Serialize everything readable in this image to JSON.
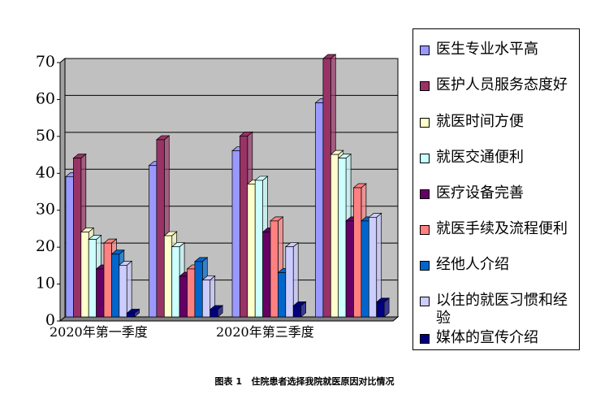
{
  "chart_data": {
    "type": "bar",
    "caption_label": "图表 1",
    "caption": "住院患者选择我院就医原因对比情况",
    "categories": [
      "2020年第一季度",
      null,
      "2020年第三季度",
      null
    ],
    "series": [
      {
        "name": "医生专业水平高",
        "color": "#9999ff",
        "values": [
          38,
          41,
          45,
          58
        ]
      },
      {
        "name": "医护人员服务态度好",
        "color": "#993366",
        "values": [
          43,
          48,
          49,
          70
        ]
      },
      {
        "name": "就医时间方便",
        "color": "#ffffcc",
        "values": [
          23,
          22,
          36,
          44
        ]
      },
      {
        "name": "就医交通便利",
        "color": "#ccffff",
        "values": [
          21,
          19,
          37,
          43
        ]
      },
      {
        "name": "医疗设备完善",
        "color": "#660066",
        "values": [
          13,
          11,
          23,
          26
        ]
      },
      {
        "name": "就医手续及流程便利",
        "color": "#ff8080",
        "values": [
          20,
          13,
          26,
          35
        ]
      },
      {
        "name": "经他人介绍",
        "color": "#0066cc",
        "values": [
          17,
          15,
          12,
          26
        ]
      },
      {
        "name": "以往的就医习惯和经验",
        "color": "#ccccff",
        "values": [
          14,
          10,
          19,
          27
        ]
      },
      {
        "name": "媒体的宣传介绍",
        "color": "#000080",
        "values": [
          1,
          2,
          3,
          4
        ]
      }
    ],
    "ylim": [
      0,
      70
    ],
    "yticks": [
      0,
      10,
      20,
      30,
      40,
      50,
      60,
      70
    ],
    "grid": true,
    "background": "#c0c0c0"
  }
}
